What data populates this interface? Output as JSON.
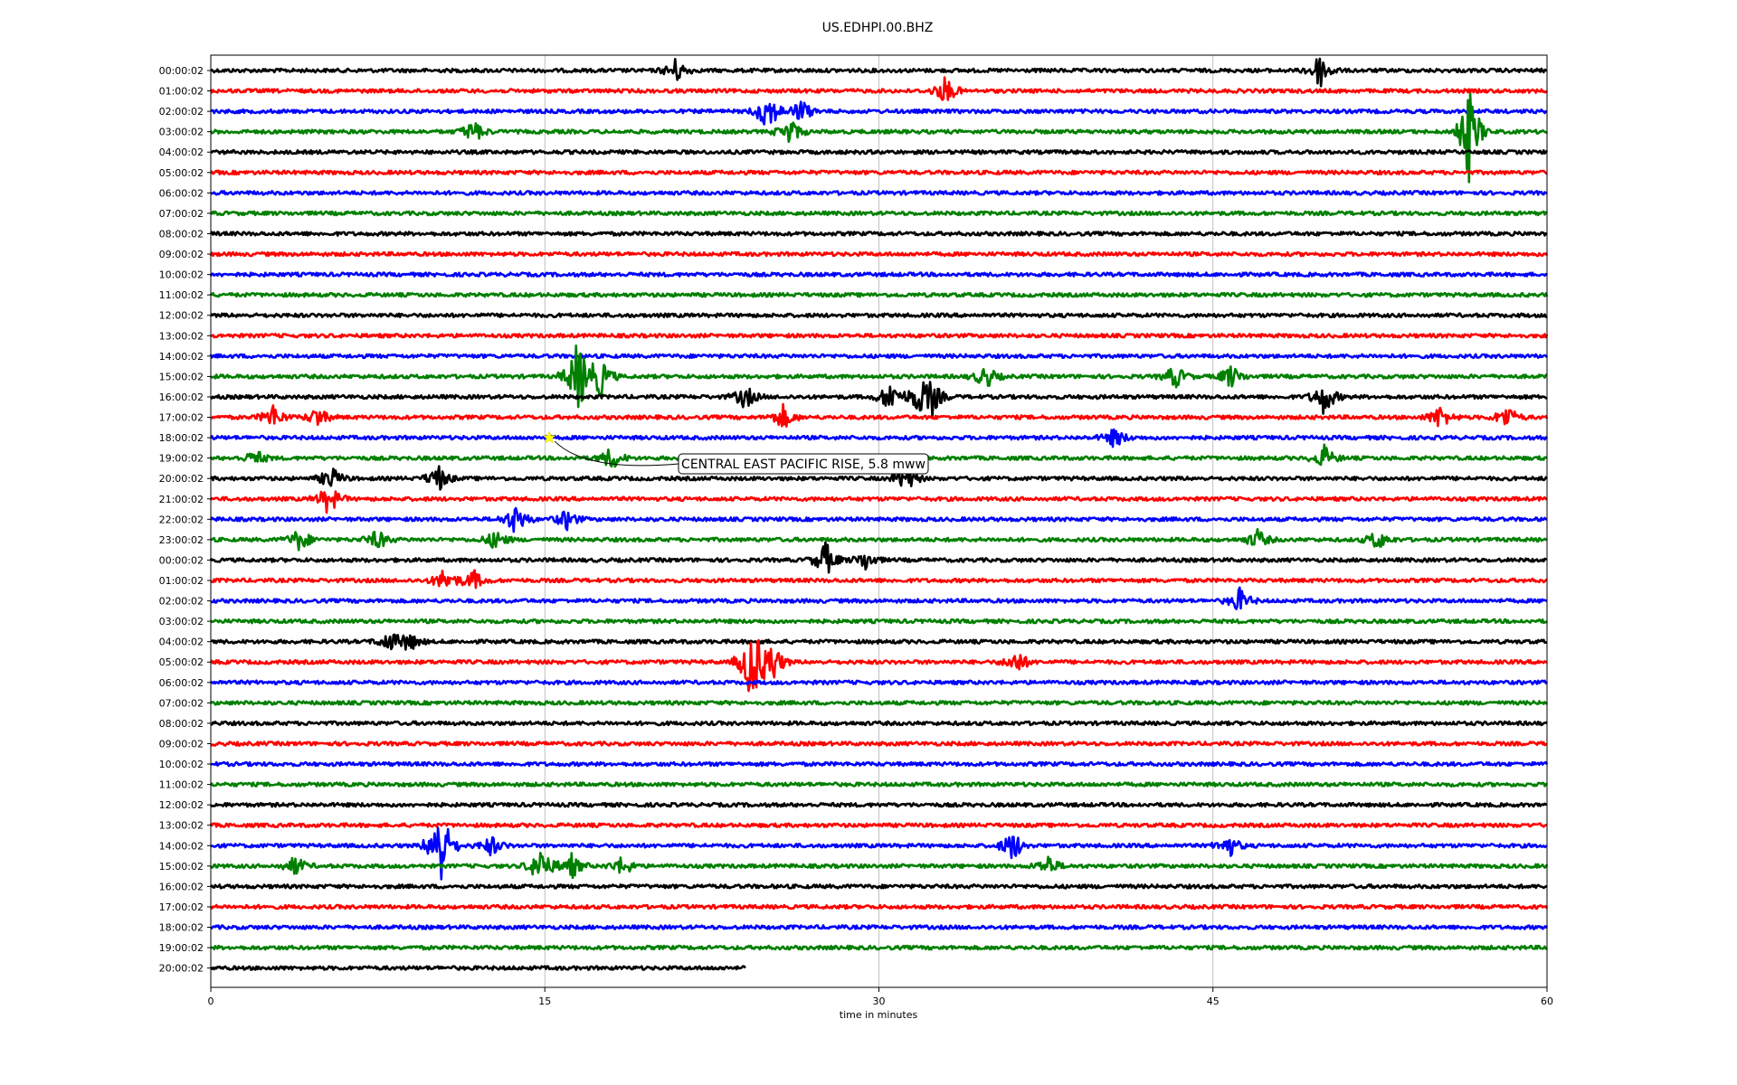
{
  "chart_data": {
    "type": "line",
    "title": "US.EDHPI.00.BHZ",
    "xlabel": "time in minutes",
    "ylabel": "",
    "xlim": [
      0,
      60
    ],
    "x_ticks": [
      "0",
      "15",
      "30",
      "45",
      "60"
    ],
    "grid": "vertical",
    "colors": [
      "#000000",
      "#ff0000",
      "#0000ff",
      "#008000"
    ],
    "rows": [
      "00:00:02",
      "01:00:02",
      "02:00:02",
      "03:00:02",
      "04:00:02",
      "05:00:02",
      "06:00:02",
      "07:00:02",
      "08:00:02",
      "09:00:02",
      "10:00:02",
      "11:00:02",
      "12:00:02",
      "13:00:02",
      "14:00:02",
      "15:00:02",
      "16:00:02",
      "17:00:02",
      "18:00:02",
      "19:00:02",
      "20:00:02",
      "21:00:02",
      "22:00:02",
      "23:00:02",
      "00:00:02",
      "01:00:02",
      "02:00:02",
      "03:00:02",
      "04:00:02",
      "05:00:02",
      "06:00:02",
      "07:00:02",
      "08:00:02",
      "09:00:02",
      "10:00:02",
      "11:00:02",
      "12:00:02",
      "13:00:02",
      "14:00:02",
      "15:00:02",
      "16:00:02",
      "17:00:02",
      "18:00:02",
      "19:00:02",
      "20:00:02"
    ],
    "last_row_end_minute": 24,
    "events": [
      {
        "row": 0,
        "minute": 49.8,
        "amp": 0.9
      },
      {
        "row": 0,
        "minute": 20.9,
        "amp": 0.6
      },
      {
        "row": 1,
        "minute": 33,
        "amp": 0.7
      },
      {
        "row": 2,
        "minute": 25,
        "amp": 1.1
      },
      {
        "row": 2,
        "minute": 26.5,
        "amp": 0.6
      },
      {
        "row": 3,
        "minute": 56.5,
        "amp": 2.4
      },
      {
        "row": 3,
        "minute": 26,
        "amp": 0.7
      },
      {
        "row": 3,
        "minute": 11.8,
        "amp": 0.6
      },
      {
        "row": 15,
        "minute": 16.5,
        "amp": 2.0
      },
      {
        "row": 15,
        "minute": 17.5,
        "amp": 1.0
      },
      {
        "row": 15,
        "minute": 34.8,
        "amp": 0.6
      },
      {
        "row": 15,
        "minute": 43.3,
        "amp": 0.6
      },
      {
        "row": 15,
        "minute": 45.8,
        "amp": 0.6
      },
      {
        "row": 16,
        "minute": 24,
        "amp": 0.6
      },
      {
        "row": 16,
        "minute": 30.5,
        "amp": 0.8
      },
      {
        "row": 16,
        "minute": 31.8,
        "amp": 0.8
      },
      {
        "row": 16,
        "minute": 32.4,
        "amp": 0.8
      },
      {
        "row": 16,
        "minute": 50,
        "amp": 0.9
      },
      {
        "row": 17,
        "minute": 2.8,
        "amp": 0.6
      },
      {
        "row": 17,
        "minute": 4.8,
        "amp": 0.5
      },
      {
        "row": 17,
        "minute": 25.7,
        "amp": 0.6
      },
      {
        "row": 17,
        "minute": 55.2,
        "amp": 0.6
      },
      {
        "row": 17,
        "minute": 58.2,
        "amp": 0.6
      },
      {
        "row": 18,
        "minute": 40.6,
        "amp": 0.5
      },
      {
        "row": 19,
        "minute": 2,
        "amp": 0.4
      },
      {
        "row": 19,
        "minute": 18,
        "amp": 0.6
      },
      {
        "row": 19,
        "minute": 50,
        "amp": 0.6
      },
      {
        "row": 20,
        "minute": 5.4,
        "amp": 0.6
      },
      {
        "row": 20,
        "minute": 10.2,
        "amp": 0.7
      },
      {
        "row": 20,
        "minute": 31.2,
        "amp": 0.7
      },
      {
        "row": 21,
        "minute": 5.3,
        "amp": 0.8
      },
      {
        "row": 22,
        "minute": 13.7,
        "amp": 0.8
      },
      {
        "row": 22,
        "minute": 16,
        "amp": 0.5
      },
      {
        "row": 23,
        "minute": 4,
        "amp": 0.6
      },
      {
        "row": 23,
        "minute": 7.5,
        "amp": 0.5
      },
      {
        "row": 23,
        "minute": 12.8,
        "amp": 0.5
      },
      {
        "row": 23,
        "minute": 47,
        "amp": 0.5
      },
      {
        "row": 23,
        "minute": 52.4,
        "amp": 0.5
      },
      {
        "row": 24,
        "minute": 27.6,
        "amp": 0.9
      },
      {
        "row": 24,
        "minute": 29.4,
        "amp": 0.5
      },
      {
        "row": 25,
        "minute": 10.5,
        "amp": 0.6
      },
      {
        "row": 25,
        "minute": 11.8,
        "amp": 0.5
      },
      {
        "row": 26,
        "minute": 46.2,
        "amp": 0.6
      },
      {
        "row": 28,
        "minute": 8,
        "amp": 0.5
      },
      {
        "row": 28,
        "minute": 8.9,
        "amp": 0.5
      },
      {
        "row": 29,
        "minute": 24.3,
        "amp": 2.3
      },
      {
        "row": 29,
        "minute": 25.2,
        "amp": 1.1
      },
      {
        "row": 29,
        "minute": 36.2,
        "amp": 0.6
      },
      {
        "row": 38,
        "minute": 10.3,
        "amp": 2.3
      },
      {
        "row": 38,
        "minute": 12.6,
        "amp": 0.5
      },
      {
        "row": 38,
        "minute": 36,
        "amp": 0.8
      },
      {
        "row": 38,
        "minute": 45.7,
        "amp": 0.6
      },
      {
        "row": 39,
        "minute": 14.8,
        "amp": 1.0
      },
      {
        "row": 39,
        "minute": 3.8,
        "amp": 0.5
      },
      {
        "row": 39,
        "minute": 16.2,
        "amp": 0.6
      },
      {
        "row": 39,
        "minute": 18.5,
        "amp": 0.5
      },
      {
        "row": 39,
        "minute": 37.6,
        "amp": 0.5
      }
    ],
    "annotations": [
      {
        "text": "CENTRAL EAST PACIFIC RISE, 5.8 mww",
        "row": 18,
        "minute": 15.2,
        "marker_color": "#ffff00"
      }
    ]
  }
}
